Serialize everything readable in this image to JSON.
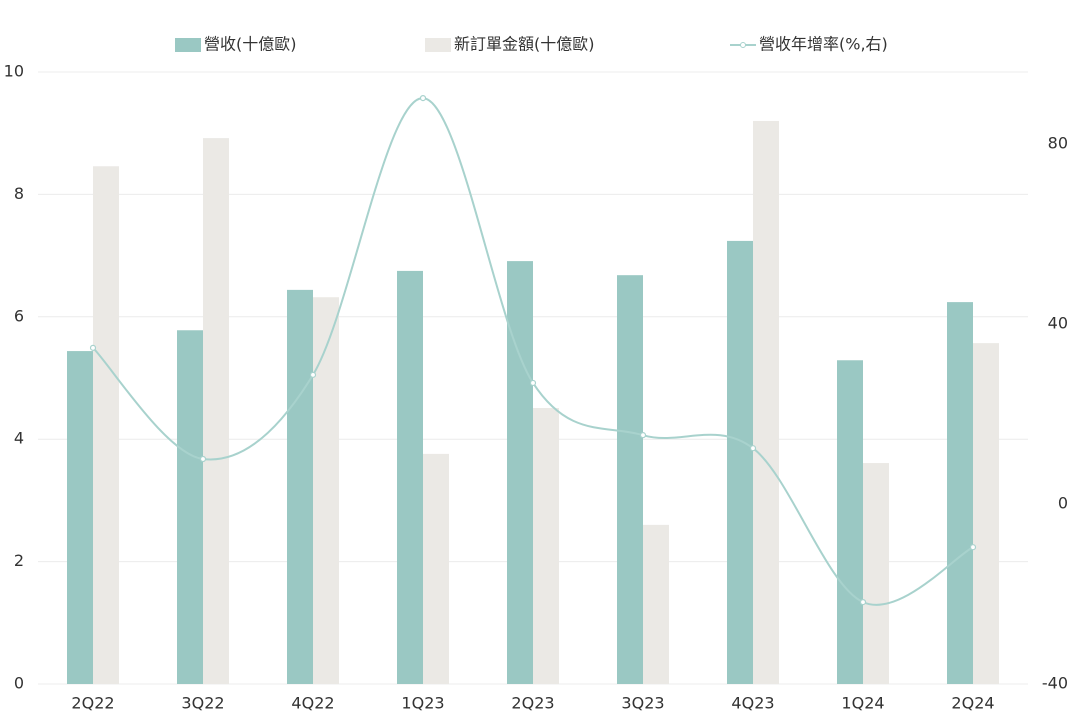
{
  "chart_data": {
    "type": "bar-line",
    "categories": [
      "2Q22",
      "3Q22",
      "4Q22",
      "1Q23",
      "2Q23",
      "3Q23",
      "4Q23",
      "1Q24",
      "2Q24"
    ],
    "series": [
      {
        "name": "營收(十億歐)",
        "type": "bar",
        "color": "#9ac8c3",
        "values": [
          5.44,
          5.78,
          6.44,
          6.75,
          6.91,
          6.68,
          7.24,
          5.29,
          6.24
        ]
      },
      {
        "name": "新訂單金額(十億歐)",
        "type": "bar",
        "color": "#ebe9e5",
        "values": [
          8.46,
          8.92,
          6.32,
          3.76,
          4.51,
          2.6,
          9.2,
          3.61,
          5.57
        ]
      },
      {
        "name": "營收年增率(%,右)",
        "type": "line",
        "axis": "y2",
        "color": "#a8d2cd",
        "values": [
          34.7,
          10,
          28.7,
          90.2,
          26.9,
          15.3,
          12.4,
          -21.8,
          -9.6
        ]
      }
    ],
    "ylim": [
      0,
      10
    ],
    "yticks": [
      0,
      2,
      4,
      6,
      8,
      10
    ],
    "y2lim": [
      -40,
      96
    ],
    "y2ticks": [
      -40,
      0,
      40,
      80
    ],
    "grid": true,
    "legend": "top"
  }
}
